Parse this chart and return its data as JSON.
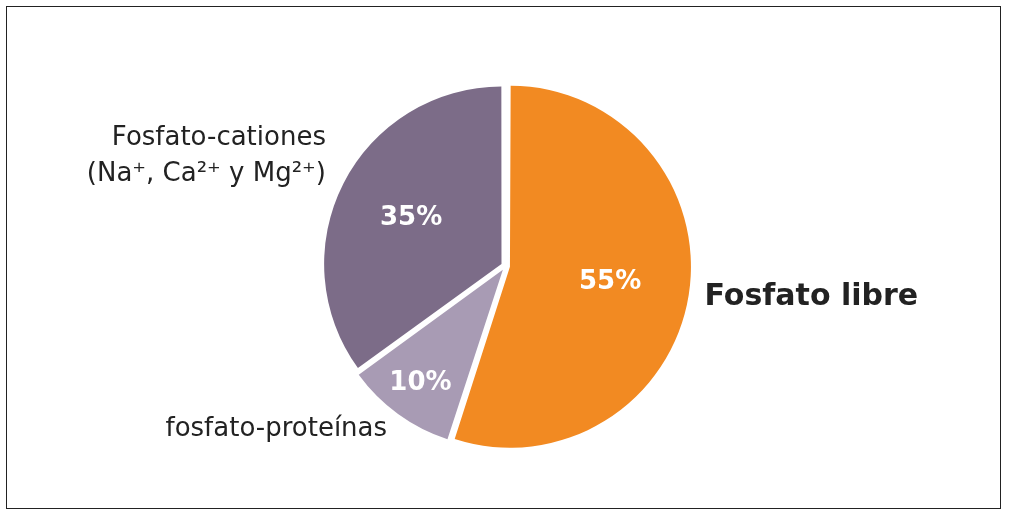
{
  "chart_data": {
    "type": "pie",
    "categories": [
      "Fosfato libre",
      "fosfato-proteínas",
      "Fosfato-cationes (Na⁺, Ca²⁺ y Mg²⁺)"
    ],
    "values": [
      55,
      10,
      35
    ],
    "colors": [
      "#f28a22",
      "#a89bb4",
      "#7c6c88"
    ],
    "value_labels": [
      "55%",
      "10%",
      "35%"
    ],
    "legend": false
  }
}
